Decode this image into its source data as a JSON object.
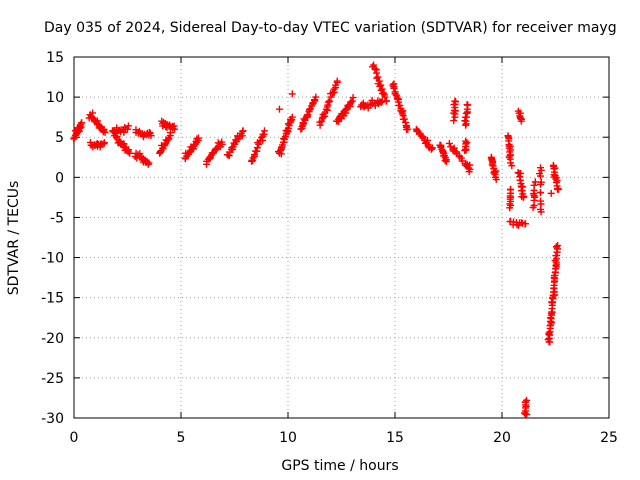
{
  "chart_data": {
    "type": "scatter",
    "title": "Day 035 of 2024, Sidereal Day-to-day VTEC variation (SDTVAR) for receiver mayg",
    "xlabel": "GPS time / hours",
    "ylabel": "SDTVAR / TECUs",
    "xlim": [
      0,
      25
    ],
    "ylim": [
      -30,
      15
    ],
    "x_ticks": [
      0,
      5,
      10,
      15,
      20,
      25
    ],
    "y_ticks": [
      15,
      10,
      5,
      0,
      -5,
      -10,
      -15,
      -20,
      -25,
      -30
    ],
    "grid": true,
    "marker": "+",
    "marker_color": "#ff0000",
    "segments": [
      {
        "x0": 0.0,
        "y0": 4.8,
        "x1": 0.35,
        "y1": 6.8,
        "n": 10
      },
      {
        "x0": 0.75,
        "y0": 7.8,
        "x1": 1.45,
        "y1": 5.6,
        "n": 12
      },
      {
        "x0": 0.8,
        "y0": 4.0,
        "x1": 1.4,
        "y1": 4.2,
        "n": 8
      },
      {
        "x0": 1.8,
        "y0": 5.8,
        "x1": 2.5,
        "y1": 6.0,
        "n": 8
      },
      {
        "x0": 1.9,
        "y0": 5.2,
        "x1": 2.6,
        "y1": 3.0,
        "n": 10
      },
      {
        "x0": 2.9,
        "y0": 5.6,
        "x1": 3.6,
        "y1": 5.2,
        "n": 8
      },
      {
        "x0": 2.9,
        "y0": 3.0,
        "x1": 3.5,
        "y1": 1.8,
        "n": 8
      },
      {
        "x0": 4.1,
        "y0": 7.0,
        "x1": 4.7,
        "y1": 6.0,
        "n": 8
      },
      {
        "x0": 4.0,
        "y0": 3.0,
        "x1": 4.5,
        "y1": 5.2,
        "n": 8
      },
      {
        "x0": 5.2,
        "y0": 2.4,
        "x1": 5.8,
        "y1": 4.6,
        "n": 10
      },
      {
        "x0": 6.2,
        "y0": 2.0,
        "x1": 6.9,
        "y1": 4.4,
        "n": 10
      },
      {
        "x0": 7.2,
        "y0": 2.8,
        "x1": 7.9,
        "y1": 5.8,
        "n": 10
      },
      {
        "x0": 8.3,
        "y0": 2.0,
        "x1": 8.9,
        "y1": 5.8,
        "n": 10
      },
      {
        "x0": 9.6,
        "y0": 3.0,
        "x1": 10.2,
        "y1": 7.5,
        "n": 14
      },
      {
        "x0": 10.6,
        "y0": 6.0,
        "x1": 11.3,
        "y1": 10.0,
        "n": 12
      },
      {
        "x0": 11.5,
        "y0": 6.5,
        "x1": 12.3,
        "y1": 12.0,
        "n": 12
      },
      {
        "x0": 12.3,
        "y0": 7.0,
        "x1": 13.0,
        "y1": 9.5,
        "n": 12
      },
      {
        "x0": 13.4,
        "y0": 8.8,
        "x1": 14.4,
        "y1": 9.5,
        "n": 10
      },
      {
        "x0": 14.0,
        "y0": 14.0,
        "x1": 14.6,
        "y1": 9.5,
        "n": 10
      },
      {
        "x0": 14.9,
        "y0": 11.5,
        "x1": 15.6,
        "y1": 6.0,
        "n": 14
      },
      {
        "x0": 16.0,
        "y0": 6.0,
        "x1": 16.7,
        "y1": 3.5,
        "n": 10
      },
      {
        "x0": 17.1,
        "y0": 4.0,
        "x1": 17.4,
        "y1": 2.2,
        "n": 8
      },
      {
        "x0": 17.6,
        "y0": 3.8,
        "x1": 18.1,
        "y1": 2.4,
        "n": 6
      },
      {
        "x0": 17.8,
        "y0": 9.5,
        "x1": 17.8,
        "y1": 7.5,
        "n": 6
      },
      {
        "x0": 18.4,
        "y0": 9.0,
        "x1": 18.3,
        "y1": 6.5,
        "n": 6
      },
      {
        "x0": 18.3,
        "y0": 4.5,
        "x1": 18.3,
        "y1": 3.5,
        "n": 4
      },
      {
        "x0": 18.3,
        "y0": 1.5,
        "x1": 18.5,
        "y1": 1.0,
        "n": 4
      },
      {
        "x0": 19.5,
        "y0": 2.5,
        "x1": 19.7,
        "y1": 0.0,
        "n": 8
      },
      {
        "x0": 20.3,
        "y0": 5.0,
        "x1": 20.4,
        "y1": 1.8,
        "n": 8
      },
      {
        "x0": 20.4,
        "y0": -1.5,
        "x1": 20.4,
        "y1": -3.5,
        "n": 5
      },
      {
        "x0": 20.4,
        "y0": -5.5,
        "x1": 21.1,
        "y1": -5.8,
        "n": 6
      },
      {
        "x0": 20.8,
        "y0": 0.5,
        "x1": 21.0,
        "y1": -2.5,
        "n": 8
      },
      {
        "x0": 20.8,
        "y0": 8.0,
        "x1": 20.9,
        "y1": 7.0,
        "n": 4
      },
      {
        "x0": 21.1,
        "y0": -28.0,
        "x1": 21.1,
        "y1": -29.5,
        "n": 5
      },
      {
        "x0": 21.5,
        "y0": -1.0,
        "x1": 21.5,
        "y1": -3.5,
        "n": 5
      },
      {
        "x0": 21.8,
        "y0": 1.2,
        "x1": 21.8,
        "y1": -4.0,
        "n": 6
      },
      {
        "x0": 22.2,
        "y0": -20.5,
        "x1": 22.6,
        "y1": -8.5,
        "n": 30
      },
      {
        "x0": 22.4,
        "y0": 1.5,
        "x1": 22.6,
        "y1": -1.5,
        "n": 8
      }
    ],
    "points": [
      {
        "x": 10.2,
        "y": 10.4
      },
      {
        "x": 9.6,
        "y": 8.5
      },
      {
        "x": 22.3,
        "y": -2.0
      }
    ]
  }
}
